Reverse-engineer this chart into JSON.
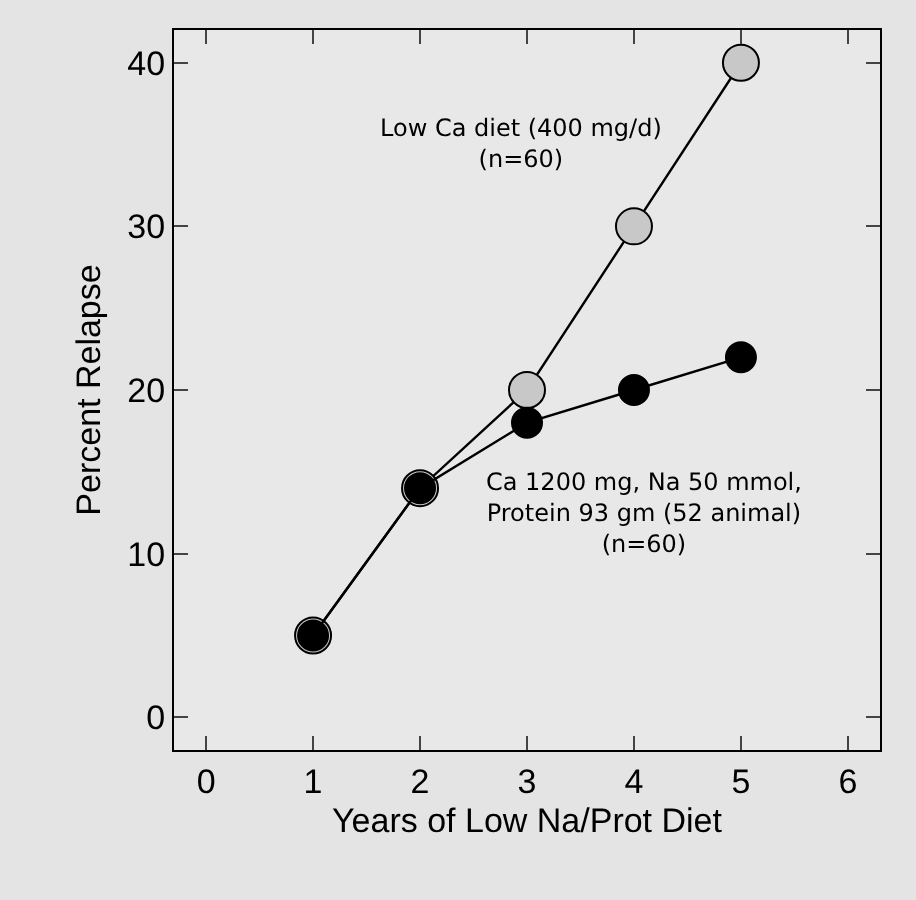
{
  "chart_data": {
    "type": "line",
    "xlabel": "Years of Low Na/Prot Diet",
    "ylabel": "Percent Relapse",
    "x": [
      1,
      2,
      3,
      4,
      5
    ],
    "series": [
      {
        "name": "Low Ca diet (400 mg/d)\n(n=60)",
        "color": "#c8c8c8",
        "values": [
          5,
          14,
          20,
          30,
          40
        ]
      },
      {
        "name": "Ca 1200 mg, Na 50 mmol,\nProtein 93 gm (52 animal)\n(n=60)",
        "color": "#000000",
        "values": [
          5,
          14,
          18,
          20,
          22
        ]
      }
    ],
    "xlim": [
      -0.3,
      6.3
    ],
    "xticks": [
      0,
      1,
      2,
      3,
      4,
      5,
      6
    ],
    "ylim": [
      -2,
      42
    ],
    "yticks": [
      0,
      10,
      20,
      30,
      40
    ],
    "grid": false,
    "legend": false,
    "marker": "circle",
    "line_style": "solid"
  }
}
